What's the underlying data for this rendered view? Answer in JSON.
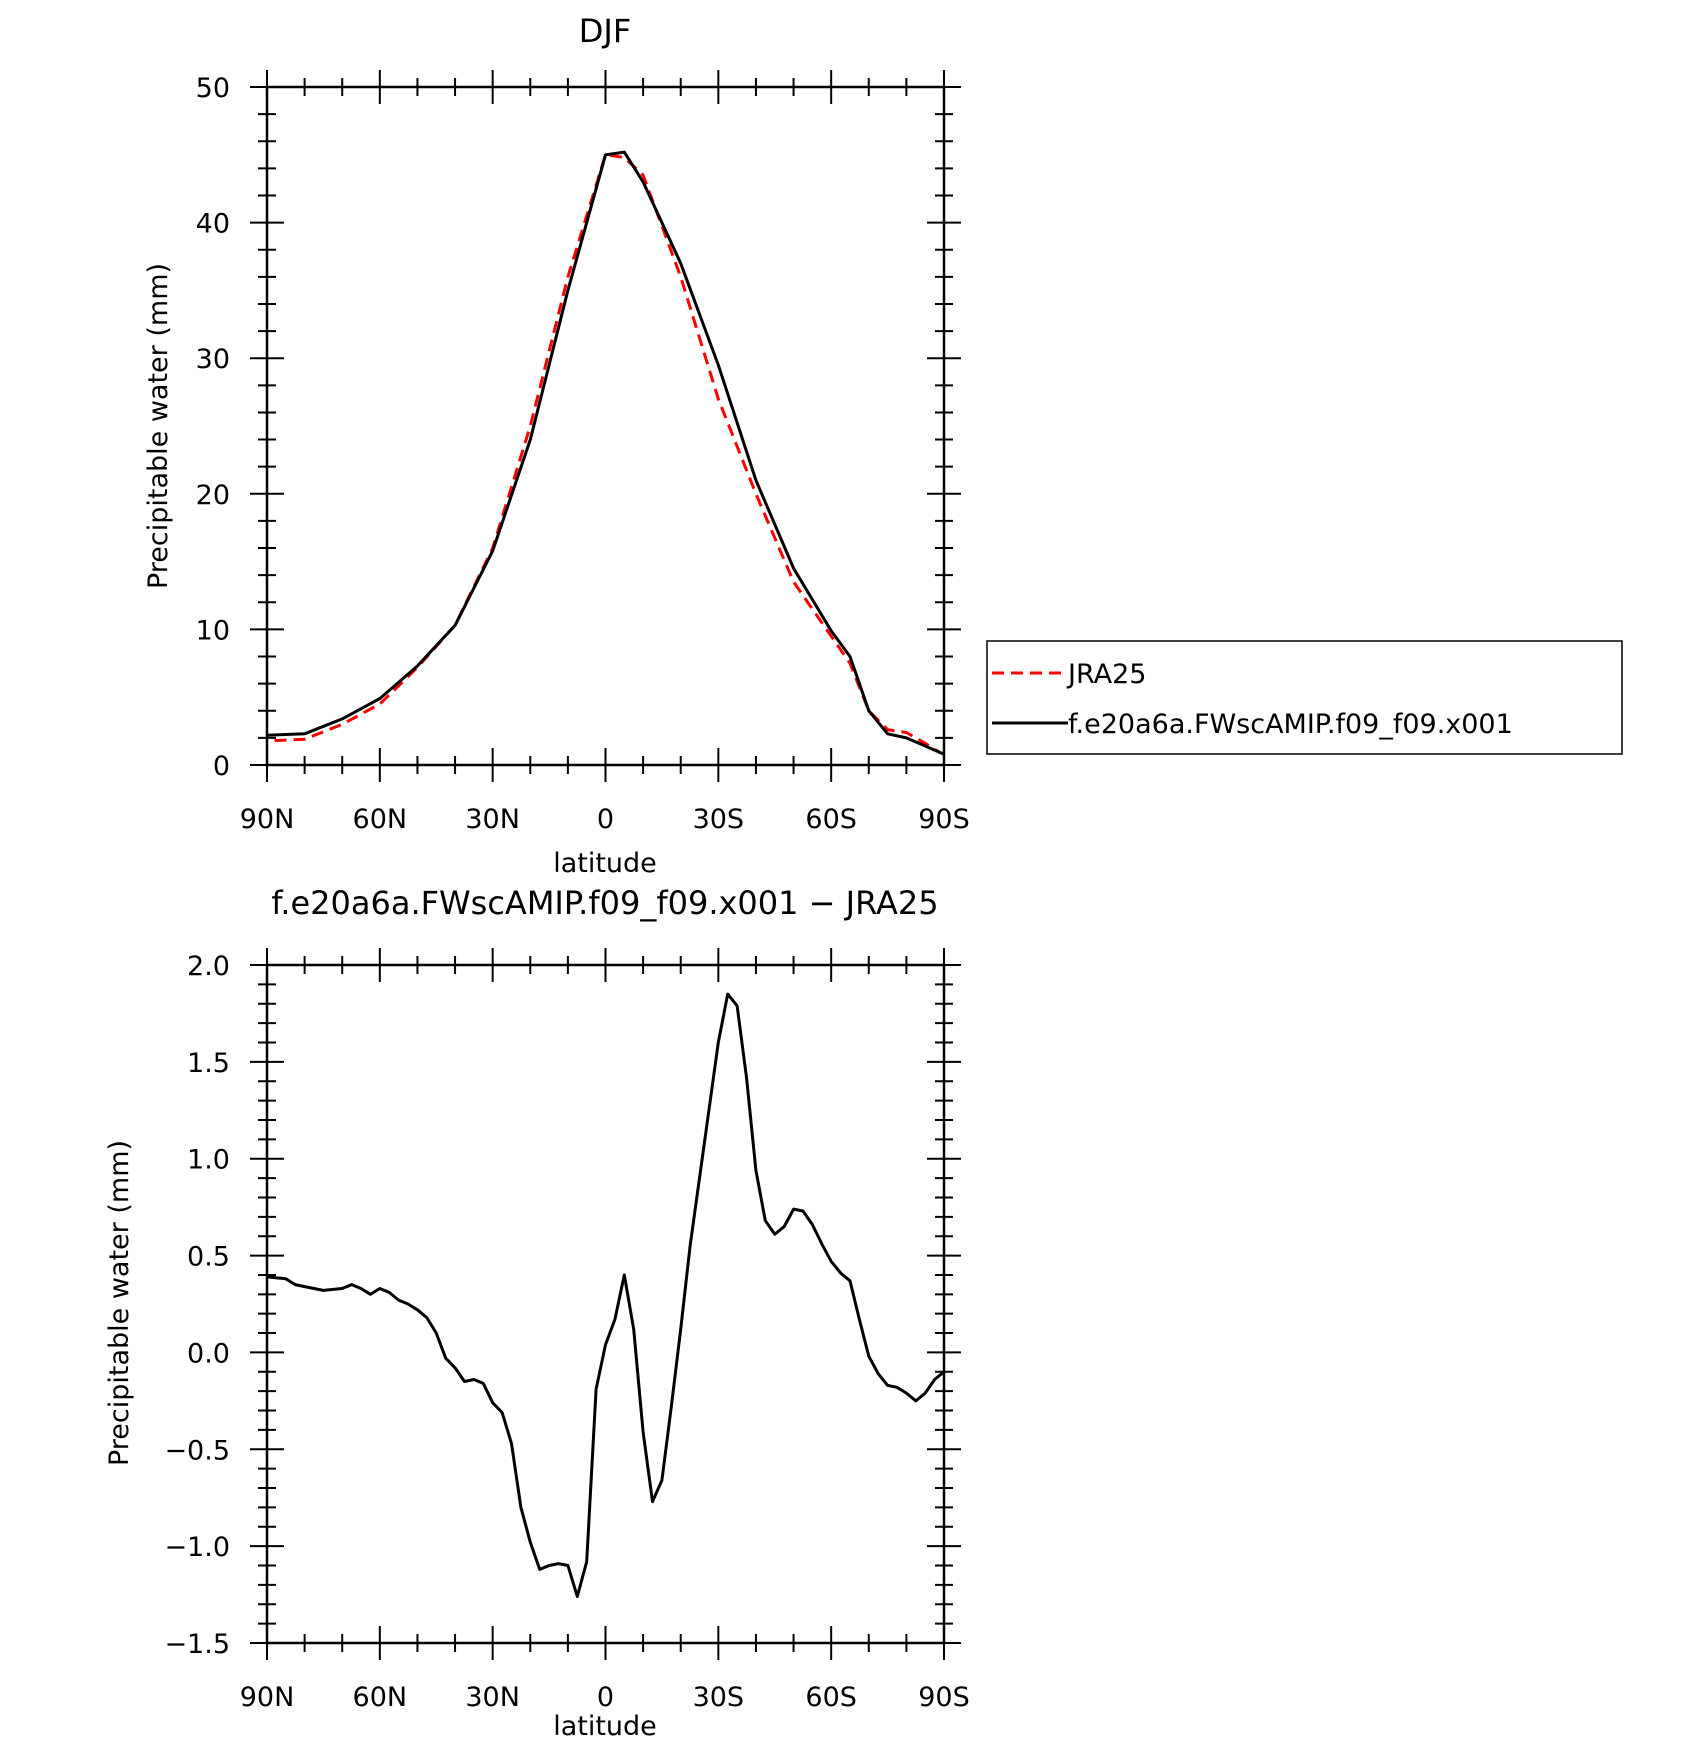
{
  "chart_data": [
    {
      "type": "line",
      "title": "DJF",
      "xlabel": "latitude",
      "ylabel": "Precipitable water (mm)",
      "xlim": [
        90,
        -90
      ],
      "ylim": [
        0,
        50
      ],
      "x_tick_values": [
        90,
        60,
        30,
        0,
        -30,
        -60,
        -90
      ],
      "x_tick_labels": [
        "90N",
        "60N",
        "30N",
        "0",
        "30S",
        "60S",
        "90S"
      ],
      "y_ticks": [
        0,
        10,
        20,
        30,
        40,
        50
      ],
      "y_tick_labels": [
        "0",
        "10",
        "20",
        "30",
        "40",
        "50"
      ],
      "legend_position": "right",
      "series": [
        {
          "name": "JRA25",
          "color": "#ff0000",
          "dash": true,
          "x": [
            88,
            80,
            70,
            60,
            50,
            40,
            30,
            20,
            10,
            0,
            -5,
            -10,
            -20,
            -30,
            -40,
            -50,
            -60,
            -65,
            -70,
            -75,
            -80,
            -85,
            -89
          ],
          "y": [
            1.8,
            1.9,
            3.0,
            4.5,
            7.2,
            10.3,
            16.0,
            25.0,
            36.0,
            45.0,
            44.8,
            43.5,
            36.0,
            27.0,
            20.0,
            13.5,
            9.5,
            7.5,
            4.0,
            2.6,
            2.4,
            1.6,
            0.9
          ]
        },
        {
          "name": "f.e20a6a.FWscAMIP.f09_f09.x001",
          "color": "#000000",
          "dash": false,
          "x": [
            90,
            80,
            70,
            60,
            50,
            40,
            30,
            20,
            10,
            0,
            -5,
            -10,
            -20,
            -30,
            -40,
            -50,
            -60,
            -65,
            -70,
            -75,
            -80,
            -85,
            -90
          ],
          "y": [
            2.2,
            2.3,
            3.4,
            4.9,
            7.3,
            10.3,
            15.8,
            24.0,
            35.0,
            45.0,
            45.2,
            43.0,
            37.0,
            29.5,
            21.0,
            14.5,
            9.9,
            8.0,
            4.0,
            2.3,
            2.0,
            1.4,
            0.8
          ]
        }
      ]
    },
    {
      "type": "line",
      "title": "f.e20a6a.FWscAMIP.f09_f09.x001 − JRA25",
      "xlabel": "latitude",
      "ylabel": "Precipitable water (mm)",
      "xlim": [
        90,
        -90
      ],
      "ylim": [
        -1.5,
        2.0
      ],
      "x_tick_values": [
        90,
        60,
        30,
        0,
        -30,
        -60,
        -90
      ],
      "x_tick_labels": [
        "90N",
        "60N",
        "30N",
        "0",
        "30S",
        "60S",
        "90S"
      ],
      "y_ticks": [
        -1.5,
        -1.0,
        -0.5,
        0.0,
        0.5,
        1.0,
        1.5,
        2.0
      ],
      "y_tick_labels": [
        "−1.5",
        "−1.0",
        "−0.5",
        "0.0",
        "0.5",
        "1.0",
        "1.5",
        "2.0"
      ],
      "series": [
        {
          "color": "#000000",
          "dash": false,
          "x": [
            90,
            85,
            82.5,
            80,
            77.5,
            75,
            70,
            67.5,
            65,
            62.5,
            60,
            57.5,
            55,
            52.5,
            50,
            47.5,
            45,
            42.5,
            40,
            37.5,
            35,
            32.5,
            30,
            27.5,
            25,
            22.5,
            20,
            17.5,
            15,
            12.5,
            10,
            7.5,
            5,
            2.5,
            0,
            -2.5,
            -5,
            -7.5,
            -10,
            -12.5,
            -15,
            -17.5,
            -20,
            -22.5,
            -25,
            -27.5,
            -30,
            -32.5,
            -35,
            -37.5,
            -40,
            -42.5,
            -45,
            -47.5,
            -50,
            -52.5,
            -55,
            -57.5,
            -60,
            -62.5,
            -65,
            -67.5,
            -70,
            -72.5,
            -75,
            -77.5,
            -80,
            -82.5,
            -85,
            -87.5,
            -90
          ],
          "y": [
            0.39,
            0.38,
            0.35,
            0.34,
            0.33,
            0.32,
            0.33,
            0.35,
            0.33,
            0.3,
            0.33,
            0.31,
            0.27,
            0.25,
            0.22,
            0.18,
            0.1,
            -0.03,
            -0.08,
            -0.15,
            -0.14,
            -0.16,
            -0.26,
            -0.31,
            -0.47,
            -0.8,
            -0.98,
            -1.12,
            -1.1,
            -1.09,
            -1.1,
            -1.26,
            -1.08,
            -0.19,
            0.04,
            0.17,
            0.4,
            0.12,
            -0.41,
            -0.77,
            -0.66,
            -0.28,
            0.12,
            0.55,
            0.9,
            1.25,
            1.6,
            1.85,
            1.79,
            1.42,
            0.94,
            0.68,
            0.61,
            0.65,
            0.74,
            0.73,
            0.66,
            0.56,
            0.47,
            0.41,
            0.37,
            0.17,
            -0.02,
            -0.11,
            -0.17,
            -0.18,
            -0.21,
            -0.25,
            -0.21,
            -0.14,
            -0.1
          ]
        }
      ]
    }
  ]
}
